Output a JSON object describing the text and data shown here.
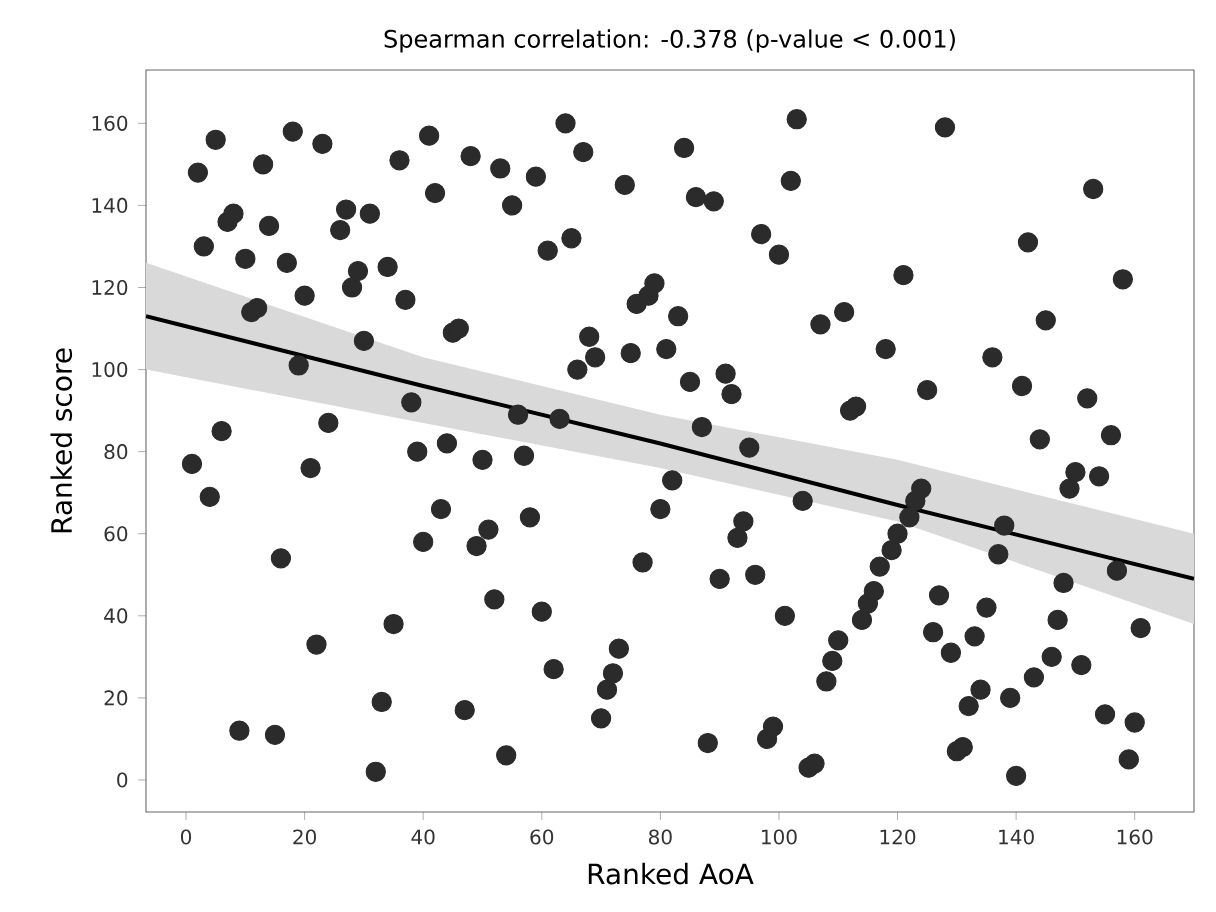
{
  "chart_data": {
    "type": "scatter",
    "title": "Spearman correlation: -0.378 (p-value < 0.001)",
    "xlabel": "Ranked AoA",
    "ylabel": "Ranked score",
    "xlim": [
      -6.75,
      170
    ],
    "ylim": [
      -7.8,
      173
    ],
    "xticks": [
      0,
      20,
      40,
      60,
      80,
      100,
      120,
      140,
      160
    ],
    "yticks": [
      0,
      20,
      40,
      60,
      80,
      100,
      120,
      140,
      160
    ],
    "series": [
      {
        "marker": "circle",
        "color": "#2b2b2b",
        "x": [
          1,
          2,
          3,
          4,
          5,
          6,
          7,
          8,
          9,
          10,
          11,
          12,
          13,
          14,
          15,
          16,
          17,
          18,
          19,
          20,
          21,
          22,
          23,
          24,
          26,
          27,
          28,
          29,
          30,
          31,
          32,
          33,
          34,
          35,
          36,
          37,
          38,
          39,
          40,
          41,
          42,
          43,
          44,
          45,
          46,
          47,
          48,
          49,
          50,
          51,
          52,
          53,
          54,
          55,
          56,
          57,
          58,
          59,
          60,
          61,
          62,
          63,
          64,
          65,
          66,
          67,
          68,
          69,
          70,
          71,
          72,
          73,
          74,
          75,
          76,
          77,
          78,
          79,
          80,
          81,
          82,
          83,
          84,
          85,
          86,
          87,
          88,
          89,
          90,
          91,
          92,
          93,
          94,
          95,
          96,
          97,
          98,
          99,
          100,
          101,
          102,
          103,
          104,
          105,
          106,
          107,
          108,
          109,
          110,
          111,
          112,
          113,
          114,
          115,
          116,
          117,
          118,
          119,
          120,
          121,
          122,
          123,
          124,
          125,
          126,
          127,
          128,
          129,
          130,
          131,
          132,
          133,
          134,
          135,
          136,
          137,
          138,
          139,
          140,
          141,
          142,
          143,
          144,
          145,
          146,
          147,
          148,
          149,
          150,
          151,
          152,
          153,
          154,
          155,
          156,
          157,
          158,
          159,
          160,
          161
        ],
        "values": [
          77,
          148,
          130,
          69,
          156,
          85,
          136,
          138,
          12,
          127,
          114,
          115,
          150,
          135,
          11,
          54,
          126,
          158,
          101,
          118,
          76,
          33,
          155,
          87,
          134,
          139,
          120,
          124,
          107,
          138,
          2,
          19,
          125,
          38,
          151,
          117,
          92,
          80,
          58,
          157,
          143,
          66,
          82,
          109,
          110,
          17,
          152,
          57,
          78,
          61,
          44,
          149,
          6,
          140,
          89,
          79,
          64,
          147,
          41,
          129,
          27,
          88,
          160,
          132,
          100,
          153,
          108,
          103,
          15,
          22,
          26,
          32,
          145,
          104,
          116,
          53,
          118,
          121,
          66,
          105,
          73,
          113,
          154,
          97,
          142,
          86,
          9,
          141,
          49,
          99,
          94,
          59,
          63,
          81,
          50,
          133,
          10,
          13,
          128,
          40,
          146,
          161,
          68,
          3,
          4,
          111,
          24,
          29,
          34,
          114,
          90,
          91,
          39,
          43,
          46,
          52,
          105,
          56,
          60,
          123,
          64,
          68,
          71,
          95,
          36,
          45,
          159,
          31,
          7,
          8,
          18,
          35,
          22,
          42,
          103,
          55,
          62,
          20,
          1,
          96,
          131,
          25,
          83,
          112,
          30,
          39,
          48,
          71,
          75,
          28,
          93,
          144,
          74,
          16,
          84,
          51,
          122,
          5,
          14,
          37
        ]
      },
      {
        "type": "line",
        "color": "#000000",
        "x": [
          -6.75,
          40,
          80,
          120,
          170
        ],
        "values": [
          113,
          96,
          82,
          67,
          49
        ],
        "lower": [
          100,
          87,
          76,
          63,
          38
        ],
        "upper": [
          126,
          103,
          89,
          78,
          60
        ]
      }
    ]
  }
}
